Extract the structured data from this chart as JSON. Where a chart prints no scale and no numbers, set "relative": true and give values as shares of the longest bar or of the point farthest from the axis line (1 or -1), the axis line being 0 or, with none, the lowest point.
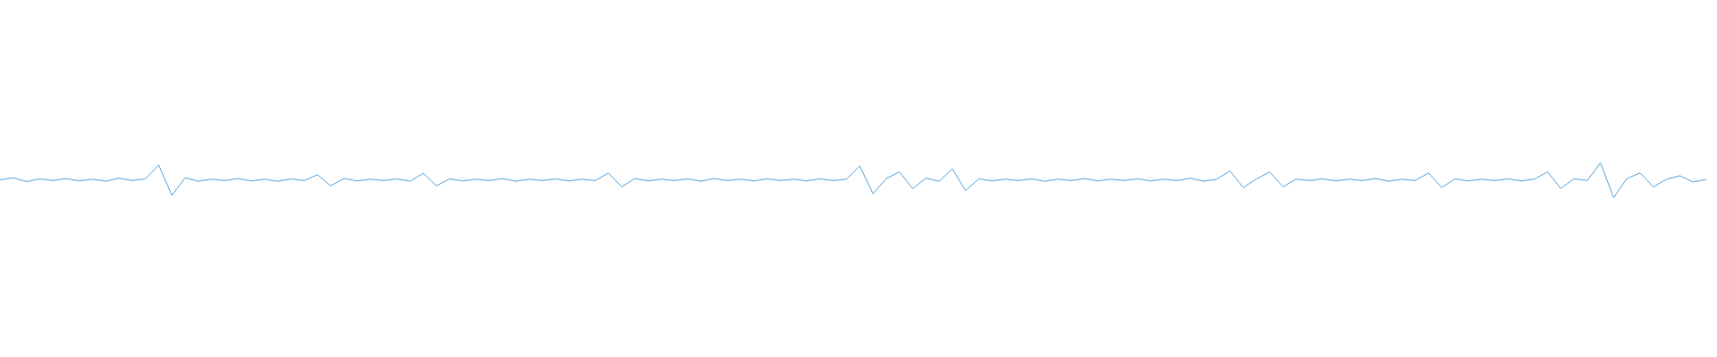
{
  "chart_data": {
    "type": "line",
    "relative": true,
    "marker": "none",
    "line_style": "solid",
    "categories": [
      null,
      null,
      null,
      null,
      null,
      null,
      null,
      null,
      null,
      null,
      null,
      null,
      null,
      null,
      null,
      null,
      null,
      null,
      null,
      null,
      null,
      null,
      null,
      null,
      null,
      null,
      null,
      null,
      null,
      null,
      null,
      null,
      null,
      null,
      null,
      null,
      null,
      null,
      null,
      null,
      null,
      null,
      null,
      null,
      null,
      null,
      null,
      null,
      null,
      null,
      null,
      null,
      null,
      null,
      null,
      null,
      null,
      null,
      null,
      null,
      null,
      null,
      null,
      null,
      null,
      null,
      null,
      null,
      null,
      null,
      null,
      null,
      null,
      null,
      null,
      null,
      null,
      null,
      null,
      null,
      null,
      null,
      null,
      null,
      null,
      null,
      null,
      null,
      null,
      null,
      null,
      null,
      null,
      null,
      null,
      null,
      null,
      null,
      null,
      null,
      null,
      null,
      null,
      null,
      null,
      null,
      null,
      null,
      null,
      null,
      null,
      null,
      null,
      null,
      null,
      null,
      null,
      null,
      null,
      null,
      null,
      null,
      null,
      null,
      null,
      null,
      null,
      null,
      null,
      null
    ],
    "series": [
      {
        "color": "#4e9fd8",
        "values": [
          0.51,
          0.57,
          0.46,
          0.54,
          0.49,
          0.55,
          0.48,
          0.53,
          0.47,
          0.56,
          0.49,
          0.54,
          0.94,
          0.06,
          0.57,
          0.47,
          0.53,
          0.49,
          0.55,
          0.48,
          0.53,
          0.47,
          0.54,
          0.49,
          0.66,
          0.34,
          0.55,
          0.48,
          0.53,
          0.49,
          0.54,
          0.47,
          0.7,
          0.34,
          0.54,
          0.48,
          0.53,
          0.49,
          0.55,
          0.47,
          0.53,
          0.49,
          0.54,
          0.48,
          0.53,
          0.49,
          0.71,
          0.31,
          0.55,
          0.48,
          0.53,
          0.49,
          0.54,
          0.47,
          0.55,
          0.49,
          0.53,
          0.48,
          0.54,
          0.49,
          0.53,
          0.48,
          0.54,
          0.49,
          0.53,
          0.91,
          0.11,
          0.55,
          0.74,
          0.26,
          0.56,
          0.47,
          0.83,
          0.2,
          0.54,
          0.48,
          0.53,
          0.49,
          0.54,
          0.47,
          0.53,
          0.49,
          0.55,
          0.48,
          0.53,
          0.49,
          0.54,
          0.48,
          0.53,
          0.49,
          0.56,
          0.47,
          0.53,
          0.77,
          0.29,
          0.54,
          0.74,
          0.31,
          0.53,
          0.49,
          0.54,
          0.48,
          0.53,
          0.49,
          0.55,
          0.47,
          0.53,
          0.49,
          0.71,
          0.29,
          0.54,
          0.48,
          0.53,
          0.49,
          0.54,
          0.48,
          0.53,
          0.74,
          0.26,
          0.54,
          0.49,
          1.0,
          0.0,
          0.55,
          0.71,
          0.31,
          0.53,
          0.63,
          0.45,
          0.52
        ]
      }
    ]
  }
}
